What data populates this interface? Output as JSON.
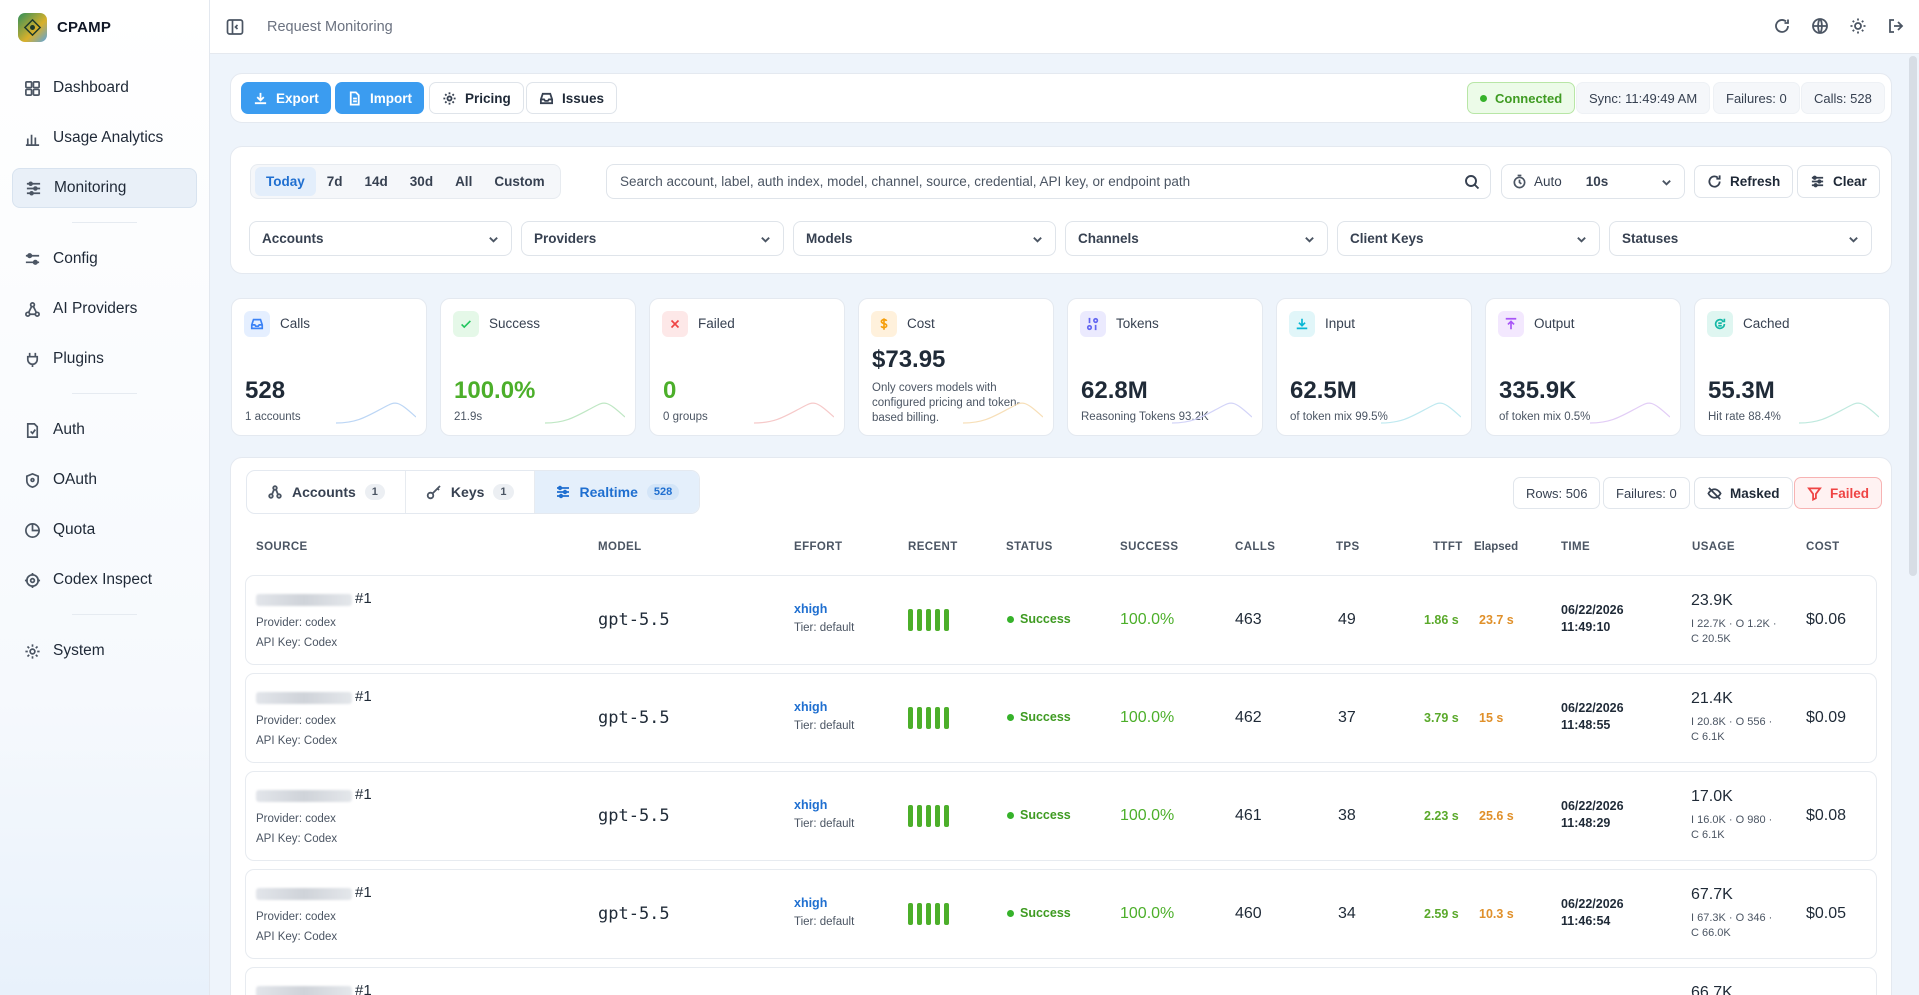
{
  "app": {
    "name": "CPAMP"
  },
  "sidebar": {
    "items": [
      {
        "label": "Dashboard"
      },
      {
        "label": "Usage Analytics"
      },
      {
        "label": "Monitoring"
      },
      {
        "label": "Config"
      },
      {
        "label": "AI Providers"
      },
      {
        "label": "Plugins"
      },
      {
        "label": "Auth"
      },
      {
        "label": "OAuth"
      },
      {
        "label": "Quota"
      },
      {
        "label": "Codex Inspect"
      },
      {
        "label": "System"
      }
    ],
    "active": "Monitoring"
  },
  "header": {
    "title": "Request Monitoring"
  },
  "toolbar": {
    "export_label": "Export",
    "import_label": "Import",
    "pricing_label": "Pricing",
    "issues_label": "Issues",
    "connection": "Connected",
    "sync": "Sync: 11:49:49 AM",
    "failures": "Failures: 0",
    "calls": "Calls: 528"
  },
  "filters": {
    "ranges": [
      "Today",
      "7d",
      "14d",
      "30d",
      "All",
      "Custom"
    ],
    "active_range": "Today",
    "search_placeholder": "Search account, label, auth index, model, channel, source, credential, API key, or endpoint path",
    "auto_label": "Auto",
    "auto_value": "10s",
    "refresh_label": "Refresh",
    "clear_label": "Clear",
    "dropdowns": [
      "Accounts",
      "Providers",
      "Models",
      "Channels",
      "Client Keys",
      "Statuses"
    ]
  },
  "stats": [
    {
      "label": "Calls",
      "value": "528",
      "sub": "1 accounts",
      "color": "#3b82f6"
    },
    {
      "label": "Success",
      "value": "100.0%",
      "sub": "21.9s",
      "color": "#22c55e"
    },
    {
      "label": "Failed",
      "value": "0",
      "sub": "0 groups",
      "color": "#ef4444"
    },
    {
      "label": "Cost",
      "value": "$73.95",
      "sub": "Only covers models with configured pricing and token-based billing.",
      "color": "#f59e0b"
    },
    {
      "label": "Tokens",
      "value": "62.8M",
      "sub": "Reasoning Tokens 93.2K",
      "color": "#6366f1"
    },
    {
      "label": "Input",
      "value": "62.5M",
      "sub": "of token mix 99.5%",
      "color": "#06b6d4"
    },
    {
      "label": "Output",
      "value": "335.9K",
      "sub": "of token mix 0.5%",
      "color": "#a855f7"
    },
    {
      "label": "Cached",
      "value": "55.3M",
      "sub": "Hit rate 88.4%",
      "color": "#14b8a6"
    }
  ],
  "tabs": [
    {
      "label": "Accounts",
      "count": "1"
    },
    {
      "label": "Keys",
      "count": "1"
    },
    {
      "label": "Realtime",
      "count": "528"
    }
  ],
  "table_tools": {
    "rows": "Rows: 506",
    "failures": "Failures: 0",
    "masked": "Masked",
    "failed": "Failed"
  },
  "columns": [
    "SOURCE",
    "MODEL",
    "EFFORT",
    "RECENT",
    "STATUS",
    "SUCCESS",
    "CALLS",
    "TPS",
    "TTFT",
    "Elapsed",
    "TIME",
    "USAGE",
    "COST"
  ],
  "rows": [
    {
      "source_num": "#1",
      "provider": "Provider: codex",
      "apikey": "API Key: Codex",
      "model": "gpt-5.5",
      "effort": "xhigh",
      "tier": "Tier: default",
      "status": "Success",
      "success": "100.0%",
      "calls": "463",
      "tps": "49",
      "ttft": "1.86 s",
      "elapsed": "23.7 s",
      "date": "06/22/2026",
      "time": "11:49:10",
      "usage": "23.9K",
      "usage_sub1": "I 22.7K · O 1.2K ·",
      "usage_sub2": "C 20.5K",
      "cost": "$0.06"
    },
    {
      "source_num": "#1",
      "provider": "Provider: codex",
      "apikey": "API Key: Codex",
      "model": "gpt-5.5",
      "effort": "xhigh",
      "tier": "Tier: default",
      "status": "Success",
      "success": "100.0%",
      "calls": "462",
      "tps": "37",
      "ttft": "3.79 s",
      "elapsed": "15 s",
      "date": "06/22/2026",
      "time": "11:48:55",
      "usage": "21.4K",
      "usage_sub1": "I 20.8K · O 556 ·",
      "usage_sub2": "C 6.1K",
      "cost": "$0.09"
    },
    {
      "source_num": "#1",
      "provider": "Provider: codex",
      "apikey": "API Key: Codex",
      "model": "gpt-5.5",
      "effort": "xhigh",
      "tier": "Tier: default",
      "status": "Success",
      "success": "100.0%",
      "calls": "461",
      "tps": "38",
      "ttft": "2.23 s",
      "elapsed": "25.6 s",
      "date": "06/22/2026",
      "time": "11:48:29",
      "usage": "17.0K",
      "usage_sub1": "I 16.0K · O 980 ·",
      "usage_sub2": "C 6.1K",
      "cost": "$0.08"
    },
    {
      "source_num": "#1",
      "provider": "Provider: codex",
      "apikey": "API Key: Codex",
      "model": "gpt-5.5",
      "effort": "xhigh",
      "tier": "Tier: default",
      "status": "Success",
      "success": "100.0%",
      "calls": "460",
      "tps": "34",
      "ttft": "2.59 s",
      "elapsed": "10.3 s",
      "date": "06/22/2026",
      "time": "11:46:54",
      "usage": "67.7K",
      "usage_sub1": "I 67.3K · O 346 ·",
      "usage_sub2": "C 66.0K",
      "cost": "$0.05"
    },
    {
      "source_num": "#1",
      "usage": "66.7K"
    }
  ]
}
